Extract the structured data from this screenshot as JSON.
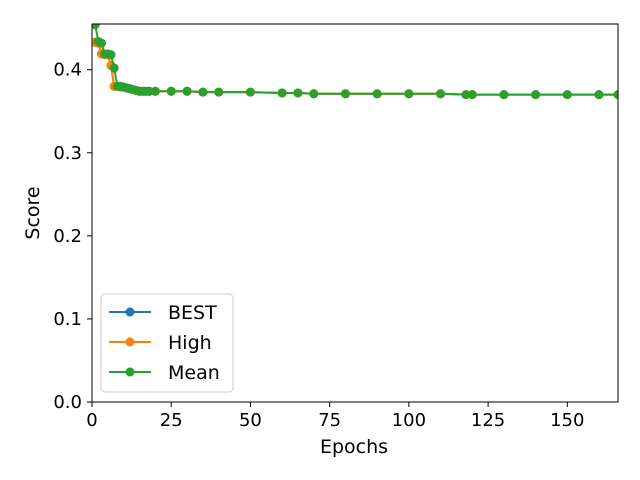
{
  "chart_data": {
    "type": "line",
    "xlabel": "Epochs",
    "ylabel": "Score",
    "xlim": [
      0,
      166
    ],
    "ylim": [
      0,
      0.455
    ],
    "xticks": [
      0,
      25,
      50,
      75,
      100,
      125,
      150
    ],
    "yticks": [
      0.0,
      0.1,
      0.2,
      0.3,
      0.4
    ],
    "xtick_labels": [
      "0",
      "25",
      "50",
      "75",
      "100",
      "125",
      "150"
    ],
    "ytick_labels": [
      "0.0",
      "0.1",
      "0.2",
      "0.3",
      "0.4"
    ],
    "grid": false,
    "legend_position": "lower-left",
    "series": [
      {
        "name": "BEST",
        "color": "#1f77b4",
        "x": [
          1,
          2,
          3,
          4,
          5,
          6,
          7,
          8,
          9,
          10,
          11,
          12,
          13,
          14,
          15,
          16,
          17,
          18,
          20,
          25,
          30,
          35,
          40,
          50,
          60,
          65,
          70,
          80,
          90,
          100,
          110,
          118,
          120,
          130,
          140,
          150,
          160,
          166
        ],
        "y": [
          0.433,
          0.432,
          0.419,
          0.418,
          0.418,
          0.405,
          0.38,
          0.38,
          0.379,
          0.379,
          0.378,
          0.377,
          0.376,
          0.375,
          0.374,
          0.374,
          0.374,
          0.374,
          0.374,
          0.374,
          0.374,
          0.373,
          0.373,
          0.373,
          0.372,
          0.372,
          0.371,
          0.371,
          0.371,
          0.371,
          0.371,
          0.37,
          0.37,
          0.37,
          0.37,
          0.37,
          0.37,
          0.37
        ]
      },
      {
        "name": "High",
        "color": "#ff7f0e",
        "x": [
          1,
          2,
          3,
          4,
          5,
          6,
          7,
          8,
          9,
          10,
          11,
          12,
          13,
          14,
          15,
          16,
          17,
          18,
          20,
          25,
          30,
          35,
          40,
          50,
          60,
          65,
          70,
          80,
          90,
          100,
          110,
          118,
          120,
          130,
          140,
          150,
          160,
          166
        ],
        "y": [
          0.433,
          0.432,
          0.419,
          0.418,
          0.418,
          0.405,
          0.38,
          0.38,
          0.379,
          0.379,
          0.378,
          0.377,
          0.376,
          0.375,
          0.374,
          0.374,
          0.374,
          0.374,
          0.374,
          0.374,
          0.374,
          0.373,
          0.373,
          0.373,
          0.372,
          0.372,
          0.371,
          0.371,
          0.371,
          0.371,
          0.371,
          0.37,
          0.37,
          0.37,
          0.37,
          0.37,
          0.37,
          0.37
        ]
      },
      {
        "name": "Mean",
        "color": "#2ca02c",
        "x": [
          1,
          2,
          3,
          4,
          5,
          6,
          7,
          8,
          9,
          10,
          11,
          12,
          13,
          14,
          15,
          16,
          17,
          18,
          20,
          25,
          30,
          35,
          40,
          50,
          60,
          65,
          70,
          80,
          90,
          100,
          110,
          118,
          120,
          130,
          140,
          150,
          160,
          166
        ],
        "y": [
          0.454,
          0.434,
          0.432,
          0.419,
          0.419,
          0.418,
          0.402,
          0.38,
          0.38,
          0.379,
          0.378,
          0.377,
          0.376,
          0.375,
          0.374,
          0.374,
          0.374,
          0.374,
          0.374,
          0.374,
          0.374,
          0.373,
          0.373,
          0.373,
          0.372,
          0.372,
          0.371,
          0.371,
          0.371,
          0.371,
          0.371,
          0.37,
          0.37,
          0.37,
          0.37,
          0.37,
          0.37,
          0.37
        ]
      }
    ]
  }
}
